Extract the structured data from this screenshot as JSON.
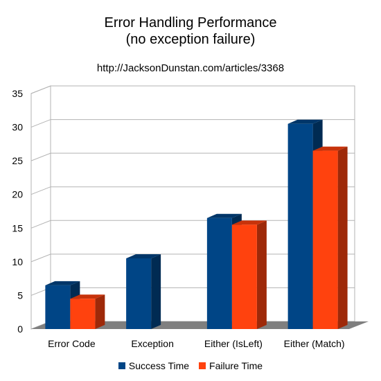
{
  "chart_data": {
    "type": "bar",
    "title_line1": "Error Handling Performance",
    "title_line2": "(no exception failure)",
    "subtitle": "http://JacksonDunstan.com/articles/3368",
    "categories": [
      "Error Code",
      "Exception",
      "Either (IsLeft)",
      "Either (Match)"
    ],
    "series": [
      {
        "name": "Success Time",
        "color": "#004586",
        "values": [
          6.5,
          10.5,
          16.5,
          30.5
        ]
      },
      {
        "name": "Failure Time",
        "color": "#ff420e",
        "values": [
          4.5,
          null,
          15.5,
          26.5
        ]
      }
    ],
    "ylim": [
      0,
      35
    ],
    "yticks": [
      "0",
      "5",
      "10",
      "15",
      "20",
      "25",
      "30",
      "35"
    ],
    "grid": true,
    "legend_position": "bottom"
  }
}
